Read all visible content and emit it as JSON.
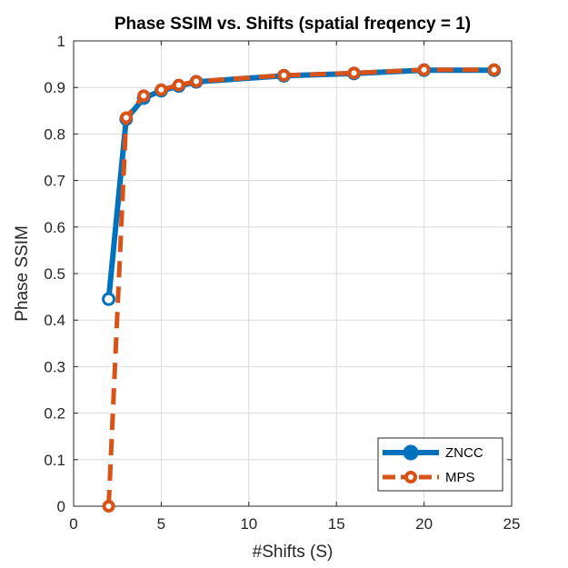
{
  "chart_data": {
    "type": "line",
    "title": "Phase SSIM vs. Shifts (spatial freqency = 1)",
    "xlabel": "#Shifts (S)",
    "ylabel": "Phase SSIM",
    "xlim": [
      0,
      25
    ],
    "ylim": [
      0,
      1
    ],
    "x_ticks": [
      "0",
      "5",
      "10",
      "15",
      "20",
      "25"
    ],
    "y_ticks": [
      "0",
      "0.1",
      "0.2",
      "0.3",
      "0.4",
      "0.5",
      "0.6",
      "0.7",
      "0.8",
      "0.9",
      "1"
    ],
    "grid": true,
    "legend_position": "bottom-right",
    "series": [
      {
        "name": "ZNCC",
        "color": "#0072BD",
        "line_style": "solid",
        "marker": "circle",
        "x": [
          2,
          3,
          4,
          5,
          6,
          7,
          12,
          16,
          20,
          24
        ],
        "y": [
          0.445,
          0.832,
          0.877,
          0.893,
          0.903,
          0.912,
          0.925,
          0.93,
          0.937,
          0.937
        ]
      },
      {
        "name": "MPS",
        "color": "#D95319",
        "line_style": "dashed",
        "marker": "circle",
        "x": [
          2,
          3,
          4,
          5,
          6,
          7,
          12,
          16,
          20,
          24
        ],
        "y": [
          0.0,
          0.835,
          0.882,
          0.895,
          0.905,
          0.913,
          0.926,
          0.931,
          0.938,
          0.938
        ]
      }
    ]
  }
}
